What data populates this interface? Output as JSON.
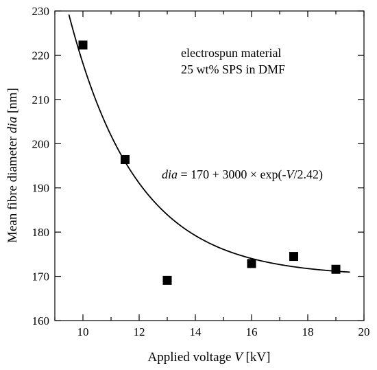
{
  "chart_data": {
    "type": "scatter",
    "xlabel_prefix": "Applied voltage ",
    "xlabel_var": "V",
    "xlabel_unit": " [kV]",
    "ylabel_prefix": "Mean fibre diameter ",
    "ylabel_var": "dia",
    "ylabel_unit": " [nm]",
    "xlim": [
      9,
      20
    ],
    "ylim": [
      160,
      230
    ],
    "xticks": [
      10,
      12,
      14,
      16,
      18,
      20
    ],
    "yticks": [
      160,
      170,
      180,
      190,
      200,
      210,
      220,
      230
    ],
    "x_tick_labels": [
      "10",
      "12",
      "14",
      "16",
      "18",
      "20"
    ],
    "y_tick_labels": [
      "160",
      "170",
      "180",
      "190",
      "200",
      "210",
      "220",
      "230"
    ],
    "grid": false,
    "series": [
      {
        "marker": "square",
        "color": "#000000",
        "points": [
          {
            "x": 10.0,
            "y": 222.3
          },
          {
            "x": 11.5,
            "y": 196.4
          },
          {
            "x": 13.0,
            "y": 169.1
          },
          {
            "x": 16.0,
            "y": 172.9
          },
          {
            "x": 17.5,
            "y": 174.5
          },
          {
            "x": 19.0,
            "y": 171.6
          }
        ]
      }
    ],
    "fit": {
      "color": "#000000",
      "x_range": [
        9.5,
        19.5
      ],
      "a": 170,
      "b": 3000,
      "tau": 2.42
    },
    "annotations": {
      "line1": "electrospun material",
      "line2": "25 wt% SPS in DMF",
      "eq_var": "dia",
      "eq_mid": " = 170 + 3000 × exp(-",
      "eq_v": "V",
      "eq_end": "/2.42)"
    }
  }
}
